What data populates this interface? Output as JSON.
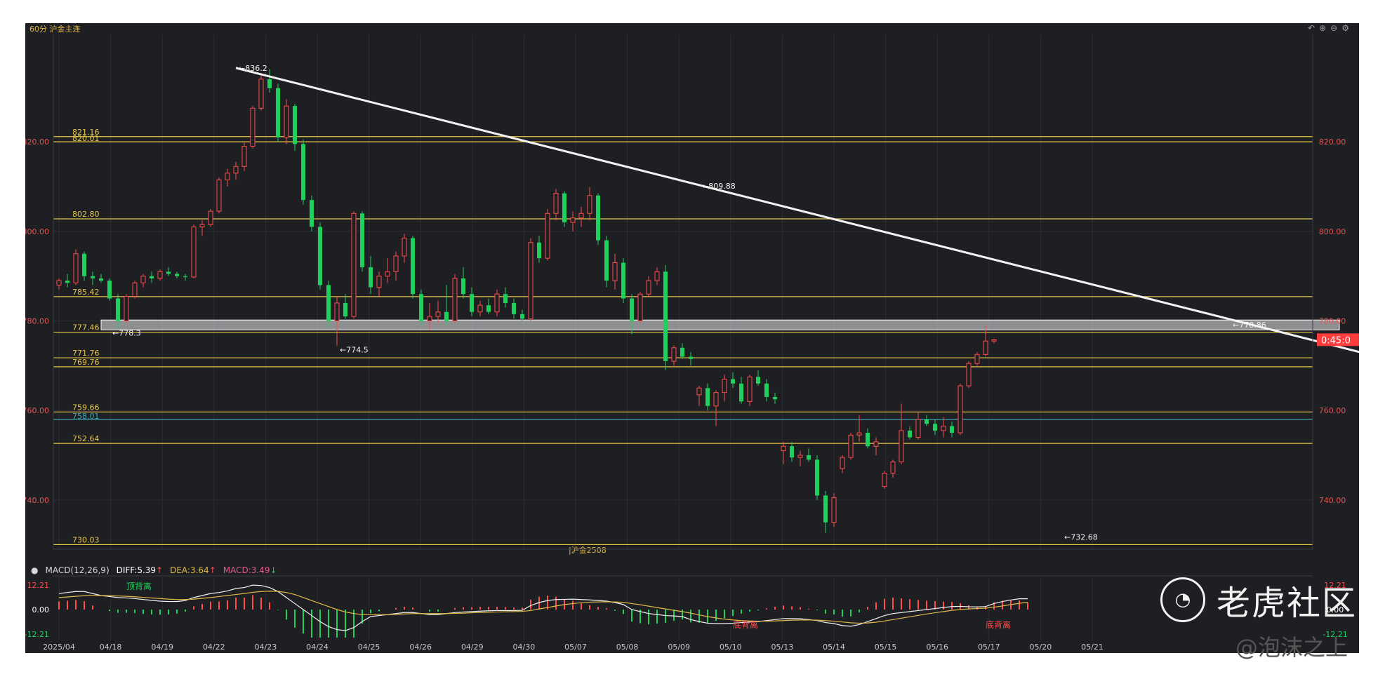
{
  "header": {
    "title": "60分 沪金主连",
    "icons": [
      "undo-icon",
      "zoom-in-icon",
      "zoom-out-icon",
      "settings-icon"
    ]
  },
  "chart_data": {
    "type": "candlestick",
    "instrument": "沪金主连",
    "period": "60分",
    "x_labels": [
      "2025/04",
      "04/18",
      "04/19",
      "04/22",
      "04/23",
      "04/24",
      "04/25",
      "04/26",
      "04/29",
      "04/30",
      "05/07",
      "05/08",
      "05/09",
      "05/10",
      "05/13",
      "05/14",
      "05/15",
      "05/16",
      "05/17",
      "05/20",
      "05/21"
    ],
    "y_ticks": [
      "820.00",
      "800.00",
      "780.00",
      "760.00",
      "740.00"
    ],
    "ylim": [
      729,
      844
    ],
    "levels": [
      {
        "label": "821.16",
        "value": 821.16,
        "color": "#e8c84a"
      },
      {
        "label": "820.01",
        "value": 820.01,
        "color": "#e8c84a"
      },
      {
        "label": "802.80",
        "value": 802.8,
        "color": "#e8c84a"
      },
      {
        "label": "785.42",
        "value": 785.42,
        "color": "#e8c84a"
      },
      {
        "label": "777.46",
        "value": 777.46,
        "color": "#e8c84a"
      },
      {
        "label": "771.76",
        "value": 771.76,
        "color": "#e8c84a"
      },
      {
        "label": "769.76",
        "value": 769.76,
        "color": "#e8c84a"
      },
      {
        "label": "759.66",
        "value": 759.66,
        "color": "#e8c84a"
      },
      {
        "label": "758.01",
        "value": 758.01,
        "color": "#3fa7b5"
      },
      {
        "label": "752.64",
        "value": 752.64,
        "color": "#e8c84a"
      },
      {
        "label": "730.03",
        "value": 730.03,
        "color": "#e8c84a"
      }
    ],
    "annotations": [
      {
        "text": "836.2",
        "x": 21,
        "y": 836.2
      },
      {
        "text": "809.88",
        "x": 76,
        "y": 809.88
      },
      {
        "text": "778.3",
        "x": 6,
        "y": 778.3
      },
      {
        "text": "774.5",
        "x": 33,
        "y": 774.5
      },
      {
        "text": "778.86",
        "x": 139,
        "y": 778.86
      },
      {
        "text": "732.68",
        "x": 119,
        "y": 732.68
      }
    ],
    "contract_label": "沪金2508",
    "current_price": "0:45:0",
    "trendline": {
      "from": {
        "x": 21,
        "y": 836.5
      },
      "to": {
        "x": 165,
        "y": 768
      }
    },
    "zone": {
      "from_x": 5,
      "to_x": 152,
      "y_low": 778.0,
      "y_high": 780.2
    },
    "candles": [
      [
        788.0,
        789.5,
        787.0,
        789.0
      ],
      [
        789.0,
        790.5,
        787.5,
        788.5
      ],
      [
        788.5,
        796.0,
        788.0,
        795.0
      ],
      [
        795.0,
        795.5,
        789.0,
        790.0
      ],
      [
        790.0,
        791.0,
        788.0,
        789.5
      ],
      [
        789.5,
        790.5,
        788.5,
        789.0
      ],
      [
        789.0,
        789.5,
        784.5,
        785.0
      ],
      [
        785.0,
        786.0,
        778.3,
        780.0
      ],
      [
        780.0,
        786.0,
        779.5,
        785.5
      ],
      [
        785.5,
        789.0,
        785.0,
        788.5
      ],
      [
        788.5,
        790.5,
        787.5,
        790.0
      ],
      [
        790.0,
        791.0,
        788.5,
        789.5
      ],
      [
        789.5,
        791.5,
        789.0,
        791.0
      ],
      [
        791.0,
        792.0,
        790.0,
        790.5
      ],
      [
        790.5,
        791.0,
        789.5,
        790.0
      ],
      [
        790.0,
        790.5,
        789.0,
        789.8
      ],
      [
        789.8,
        801.5,
        789.5,
        801.0
      ],
      [
        801.0,
        802.5,
        799.0,
        801.5
      ],
      [
        801.5,
        805.0,
        801.0,
        804.5
      ],
      [
        804.5,
        812.0,
        804.0,
        811.5
      ],
      [
        811.5,
        814.0,
        810.0,
        813.0
      ],
      [
        813.0,
        815.5,
        811.5,
        814.5
      ],
      [
        814.5,
        820.0,
        813.5,
        819.0
      ],
      [
        819.0,
        828.0,
        818.5,
        827.5
      ],
      [
        827.5,
        835.0,
        827.0,
        834.0
      ],
      [
        834.0,
        836.2,
        831.0,
        832.0
      ],
      [
        832.0,
        833.0,
        820.0,
        821.0
      ],
      [
        821.0,
        829.5,
        819.5,
        828.0
      ],
      [
        828.0,
        828.5,
        818.0,
        819.5
      ],
      [
        819.5,
        820.5,
        806.0,
        807.0
      ],
      [
        807.0,
        808.0,
        800.0,
        801.0
      ],
      [
        801.0,
        802.0,
        787.0,
        788.0
      ],
      [
        788.0,
        789.0,
        778.5,
        780.0
      ],
      [
        780.0,
        785.5,
        774.5,
        784.0
      ],
      [
        784.0,
        786.0,
        780.5,
        781.0
      ],
      [
        781.0,
        804.5,
        780.5,
        804.0
      ],
      [
        804.0,
        804.5,
        791.0,
        792.0
      ],
      [
        792.0,
        794.5,
        786.0,
        787.5
      ],
      [
        787.5,
        791.0,
        785.5,
        790.0
      ],
      [
        790.0,
        794.0,
        788.5,
        791.0
      ],
      [
        791.0,
        795.5,
        789.0,
        794.5
      ],
      [
        794.5,
        799.5,
        793.0,
        798.5
      ],
      [
        798.5,
        799.0,
        785.0,
        786.0
      ],
      [
        786.0,
        787.0,
        779.0,
        780.0
      ],
      [
        780.0,
        784.0,
        778.0,
        781.0
      ],
      [
        781.0,
        784.5,
        779.5,
        782.0
      ],
      [
        782.0,
        788.0,
        779.0,
        780.0
      ],
      [
        780.0,
        790.5,
        779.5,
        789.5
      ],
      [
        789.5,
        792.0,
        785.0,
        786.0
      ],
      [
        786.0,
        787.5,
        781.0,
        782.0
      ],
      [
        782.0,
        784.5,
        781.0,
        783.5
      ],
      [
        783.5,
        785.0,
        781.5,
        782.0
      ],
      [
        782.0,
        787.0,
        781.0,
        786.0
      ],
      [
        786.0,
        787.5,
        783.0,
        784.0
      ],
      [
        784.0,
        785.0,
        780.5,
        781.5
      ],
      [
        781.5,
        782.5,
        780.0,
        780.5
      ],
      [
        780.5,
        798.5,
        780.0,
        797.5
      ],
      [
        797.5,
        799.0,
        793.0,
        794.0
      ],
      [
        794.0,
        805.0,
        793.5,
        804.0
      ],
      [
        804.0,
        809.5,
        802.5,
        808.5
      ],
      [
        808.5,
        809.0,
        801.0,
        802.0
      ],
      [
        802.0,
        804.5,
        800.0,
        803.0
      ],
      [
        803.0,
        805.5,
        801.0,
        804.0
      ],
      [
        804.0,
        809.88,
        802.5,
        808.0
      ],
      [
        808.0,
        808.5,
        797.0,
        798.0
      ],
      [
        798.0,
        799.0,
        787.5,
        789.0
      ],
      [
        789.0,
        795.0,
        787.0,
        793.0
      ],
      [
        793.0,
        794.0,
        784.0,
        785.0
      ],
      [
        785.0,
        786.0,
        777.0,
        780.0
      ],
      [
        780.0,
        786.5,
        779.5,
        786.0
      ],
      [
        786.0,
        790.0,
        785.5,
        789.0
      ],
      [
        789.0,
        792.0,
        788.0,
        791.0
      ],
      [
        791.0,
        792.5,
        769.0,
        771.0
      ],
      [
        771.0,
        774.5,
        770.0,
        774.0
      ],
      [
        774.0,
        775.0,
        771.5,
        772.0
      ],
      [
        772.0,
        773.0,
        770.0,
        771.5
      ],
      [
        763.5,
        765.5,
        761.0,
        765.0
      ],
      [
        765.0,
        766.0,
        760.0,
        761.0
      ],
      [
        761.0,
        764.5,
        756.5,
        764.0
      ],
      [
        764.0,
        768.0,
        762.0,
        767.0
      ],
      [
        767.0,
        768.5,
        765.0,
        766.0
      ],
      [
        766.0,
        767.5,
        761.5,
        762.0
      ],
      [
        762.0,
        768.0,
        761.0,
        767.5
      ],
      [
        767.5,
        769.0,
        765.5,
        766.0
      ],
      [
        766.0,
        767.0,
        762.0,
        763.0
      ],
      [
        763.0,
        764.0,
        761.5,
        762.5
      ],
      [
        751.0,
        753.0,
        748.0,
        752.0
      ],
      [
        752.0,
        753.0,
        748.5,
        749.5
      ],
      [
        749.5,
        751.0,
        747.5,
        750.0
      ],
      [
        750.0,
        751.5,
        748.5,
        749.0
      ],
      [
        749.0,
        750.0,
        740.0,
        741.0
      ],
      [
        741.0,
        742.0,
        732.68,
        735.0
      ],
      [
        735.0,
        741.5,
        734.0,
        740.5
      ],
      [
        747.0,
        750.0,
        746.0,
        749.5
      ],
      [
        749.5,
        755.0,
        749.0,
        754.5
      ],
      [
        754.5,
        759.0,
        753.0,
        755.0
      ],
      [
        755.0,
        756.0,
        751.5,
        752.0
      ],
      [
        752.0,
        754.0,
        750.0,
        753.0
      ],
      [
        743.0,
        746.5,
        742.5,
        746.0
      ],
      [
        746.0,
        749.0,
        745.0,
        748.5
      ],
      [
        748.5,
        761.5,
        748.0,
        755.5
      ],
      [
        755.5,
        756.5,
        753.5,
        754.0
      ],
      [
        754.0,
        759.5,
        753.5,
        758.0
      ],
      [
        758.0,
        759.0,
        756.5,
        757.0
      ],
      [
        757.0,
        758.0,
        754.5,
        755.5
      ],
      [
        755.5,
        758.5,
        754.0,
        756.5
      ],
      [
        756.5,
        757.5,
        754.0,
        755.0
      ],
      [
        755.0,
        766.0,
        754.5,
        765.5
      ],
      [
        765.5,
        771.0,
        765.0,
        770.5
      ],
      [
        770.5,
        773.0,
        770.0,
        772.5
      ],
      [
        772.5,
        778.86,
        772.0,
        775.5
      ],
      [
        775.5,
        776.0,
        775.0,
        775.8
      ]
    ],
    "macd": {
      "label": "MACD(12,26,9)",
      "diff_label": "DIFF:5.39",
      "dea_label": "DEA:3.64",
      "macd_label": "MACD:3.49",
      "y_ticks": [
        "12.21",
        "0.00",
        "-12.21"
      ],
      "ylim": [
        -14,
        14
      ],
      "diff": [
        8,
        8.5,
        9,
        9,
        8,
        7,
        6.5,
        6,
        5.8,
        5.5,
        5,
        4.6,
        4.2,
        4,
        4,
        4.5,
        6,
        7,
        8,
        8.5,
        9.3,
        10.5,
        11,
        12.21,
        12,
        11,
        9,
        6,
        3,
        0,
        -3,
        -6,
        -8.5,
        -10,
        -10.5,
        -9,
        -6,
        -3.5,
        -3,
        -2.5,
        -2,
        -1.5,
        -1.5,
        -2,
        -2.5,
        -2.5,
        -2,
        -1.5,
        -1.2,
        -1,
        -0.8,
        -0.6,
        -0.5,
        -0.5,
        -0.5,
        -0.4,
        2,
        3.5,
        4.5,
        5,
        5.1,
        5.2,
        5,
        4.8,
        4.5,
        4.2,
        3.5,
        2.5,
        0,
        -1,
        -2,
        -2.5,
        -3,
        -3.2,
        -3.5,
        -5,
        -6,
        -6.8,
        -7,
        -7,
        -6.8,
        -6.5,
        -6.2,
        -6,
        -5.5,
        -5,
        -4.5,
        -4.5,
        -4.6,
        -5,
        -5.5,
        -6.5,
        -7,
        -8,
        -8.3,
        -7.5,
        -6,
        -4.5,
        -3,
        -2,
        -1.5,
        -1,
        -0.5,
        0,
        0.5,
        1,
        1.5,
        1.6,
        1.4,
        1.3,
        1.5,
        3,
        4,
        4.8,
        5.39,
        5.39
      ],
      "dea": [
        6,
        6.3,
        6.6,
        6.9,
        7,
        7,
        6.9,
        6.8,
        6.6,
        6.4,
        6.1,
        5.8,
        5.5,
        5.2,
        5,
        5,
        5.2,
        5.6,
        6,
        6.5,
        7,
        7.5,
        8,
        8.6,
        9,
        9.2,
        9.1,
        8.5,
        7.5,
        6,
        4.5,
        3,
        1.5,
        0,
        -1.2,
        -2,
        -2.5,
        -2.6,
        -2.6,
        -2.5,
        -2.4,
        -2.2,
        -2,
        -2,
        -2,
        -2,
        -2,
        -1.9,
        -1.8,
        -1.6,
        -1.5,
        -1.3,
        -1.2,
        -1.1,
        -1,
        -0.9,
        -0.5,
        0.3,
        1,
        1.8,
        2.5,
        3,
        3.4,
        3.7,
        3.8,
        3.9,
        3.8,
        3.6,
        3,
        2.4,
        1.7,
        1,
        0.3,
        -0.4,
        -1,
        -1.8,
        -2.7,
        -3.5,
        -4.2,
        -4.8,
        -5.2,
        -5.5,
        -5.7,
        -5.8,
        -5.8,
        -5.7,
        -5.5,
        -5.3,
        -5.2,
        -5.2,
        -5.3,
        -5.5,
        -5.8,
        -6.2,
        -6.6,
        -6.8,
        -6.7,
        -6.3,
        -5.7,
        -5,
        -4.3,
        -3.6,
        -2.9,
        -2.2,
        -1.6,
        -1,
        -0.4,
        0,
        0.3,
        0.5,
        0.7,
        1.2,
        1.8,
        2.5,
        3.1,
        3.64
      ]
    },
    "macd_tags": [
      "顶背离",
      "底背离",
      "底背离"
    ]
  },
  "watermark": {
    "brand": "老虎社区",
    "author": "@泡沫之上"
  }
}
